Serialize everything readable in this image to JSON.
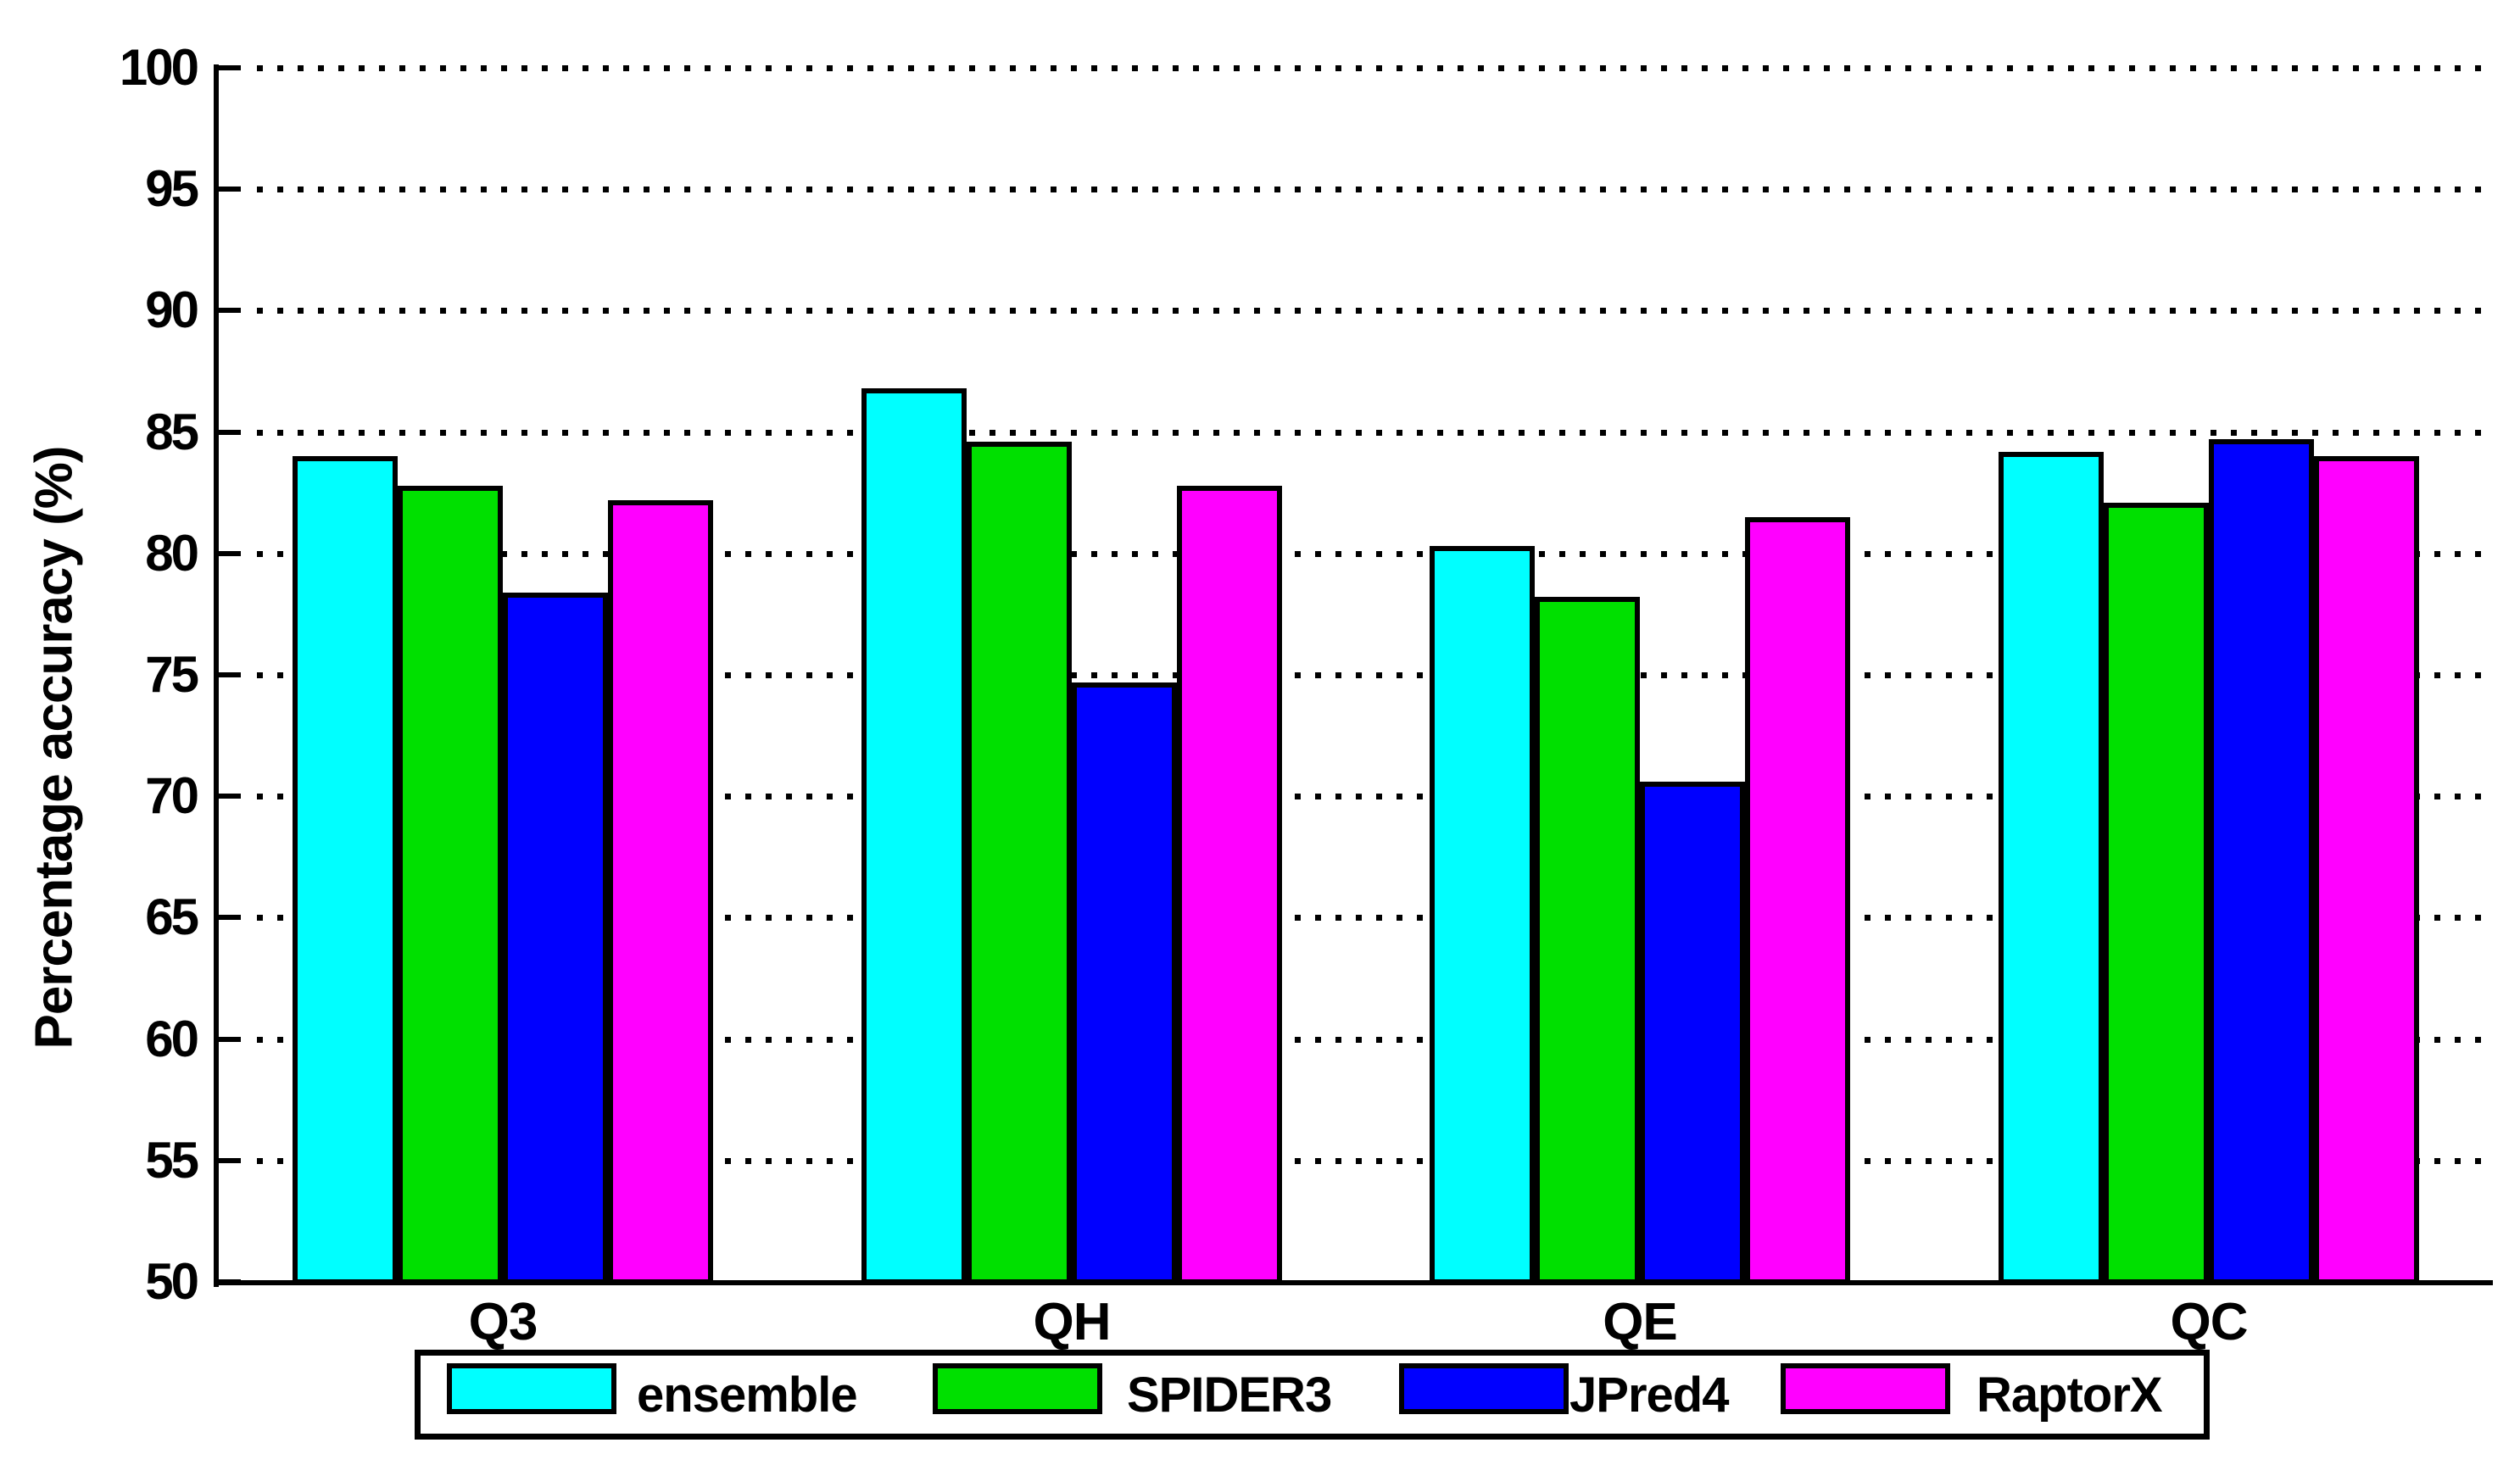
{
  "chart_data": {
    "type": "bar",
    "title": "",
    "xlabel": "",
    "ylabel": "Percentage accuracy (%)",
    "categories": [
      "Q3",
      "QH",
      "QE",
      "QC"
    ],
    "series": [
      {
        "name": "ensemble",
        "color": "#00FFFF",
        "values": [
          84.0,
          86.8,
          80.3,
          84.2
        ]
      },
      {
        "name": "SPIDER3",
        "color": "#00E000",
        "values": [
          82.8,
          84.6,
          78.2,
          82.1
        ]
      },
      {
        "name": "JPred4",
        "color": "#0000FF",
        "values": [
          78.4,
          74.7,
          70.6,
          84.7
        ]
      },
      {
        "name": "RaptorX",
        "color": "#FF00FF",
        "values": [
          82.2,
          82.8,
          81.5,
          84.0
        ]
      }
    ],
    "ylim": [
      50,
      100
    ],
    "yticks": [
      50,
      55,
      60,
      65,
      70,
      75,
      80,
      85,
      90,
      95,
      100
    ],
    "grid": "horizontal dotted",
    "legend_position": "bottom",
    "axis_color": "#000000",
    "background_color": "#FFFFFF"
  }
}
